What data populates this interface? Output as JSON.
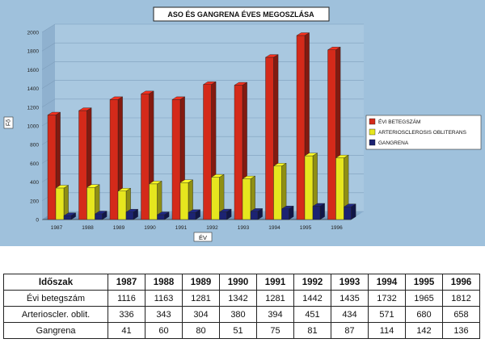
{
  "chart_data": {
    "type": "bar",
    "title": "ASO ÉS GANGRENA ÉVES MEGOSZLÁSA",
    "xlabel": "ÉV",
    "ylabel": "Fő",
    "ylim": [
      0,
      2000
    ],
    "yticks": [
      0,
      200,
      400,
      600,
      800,
      1000,
      1200,
      1400,
      1600,
      1800,
      2000
    ],
    "categories": [
      "1987",
      "1988",
      "1989",
      "1990",
      "1991",
      "1992",
      "1993",
      "1994",
      "1995",
      "1996"
    ],
    "series": [
      {
        "name": "ÉVI BETEGSZÁM",
        "color": "#d42a1a",
        "values": [
          1116,
          1163,
          1281,
          1342,
          1281,
          1442,
          1435,
          1732,
          1965,
          1812
        ]
      },
      {
        "name": "ARTERIOSCLEROSIS OBLITERANS",
        "color": "#e6e61e",
        "values": [
          336,
          343,
          304,
          380,
          394,
          451,
          434,
          571,
          680,
          658
        ]
      },
      {
        "name": "GANGRENA",
        "color": "#1c2372",
        "values": [
          41,
          60,
          80,
          51,
          75,
          81,
          87,
          114,
          142,
          136
        ]
      }
    ],
    "legend_position": "right"
  },
  "table": {
    "header_label": "Időszak",
    "rows": [
      {
        "label": "Évi betegszám",
        "values": [
          "1116",
          "1163",
          "1281",
          "1342",
          "1281",
          "1442",
          "1435",
          "1732",
          "1965",
          "1812"
        ]
      },
      {
        "label": "Arterioscler. oblit.",
        "values": [
          "336",
          "343",
          "304",
          "380",
          "394",
          "451",
          "434",
          "571",
          "680",
          "658"
        ]
      },
      {
        "label": "Gangrena",
        "values": [
          "41",
          "60",
          "80",
          "51",
          "75",
          "81",
          "87",
          "114",
          "142",
          "136"
        ]
      }
    ]
  }
}
